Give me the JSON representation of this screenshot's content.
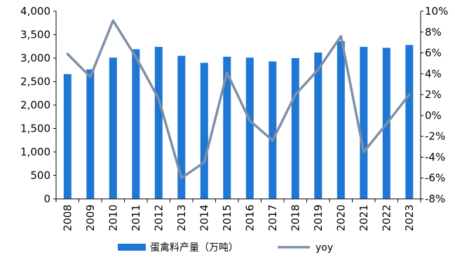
{
  "chart_data": {
    "type": "bar+line",
    "categories": [
      "2008",
      "2009",
      "2010",
      "2011",
      "2012",
      "2013",
      "2014",
      "2015",
      "2016",
      "2017",
      "2018",
      "2019",
      "2020",
      "2021",
      "2022",
      "2023"
    ],
    "series": [
      {
        "name": "蛋禽料产量（万吨）",
        "type": "bar",
        "axis": "left",
        "values": [
          2660,
          2760,
          3010,
          3190,
          3240,
          3050,
          2900,
          3030,
          3010,
          2930,
          3000,
          3120,
          3360,
          3240,
          3220,
          3280
        ],
        "color": "#1f77d4"
      },
      {
        "name": "yoy",
        "type": "line",
        "axis": "right",
        "values": [
          5.9,
          3.7,
          9.1,
          5.6,
          1.6,
          -6.0,
          -4.5,
          4.1,
          -0.5,
          -2.4,
          2.0,
          4.4,
          7.6,
          -3.5,
          -0.8,
          2.0
        ],
        "color": "#7f8fa6"
      }
    ],
    "y_left": {
      "min": 0,
      "max": 4000,
      "ticks": [
        0,
        500,
        1000,
        1500,
        2000,
        2500,
        3000,
        3500,
        4000
      ],
      "tick_labels": [
        "0",
        "500",
        "1,000",
        "1,500",
        "2,000",
        "2,500",
        "3,000",
        "3,500",
        "4,000"
      ]
    },
    "y_right": {
      "min": -8,
      "max": 10,
      "ticks": [
        -8,
        -6,
        -4,
        -2,
        0,
        2,
        4,
        6,
        8,
        10
      ],
      "tick_labels": [
        "-8%",
        "-6%",
        "-4%",
        "-2%",
        "0%",
        "2%",
        "4%",
        "6%",
        "8%",
        "10%"
      ]
    },
    "grid": false,
    "legend": "bottom"
  }
}
